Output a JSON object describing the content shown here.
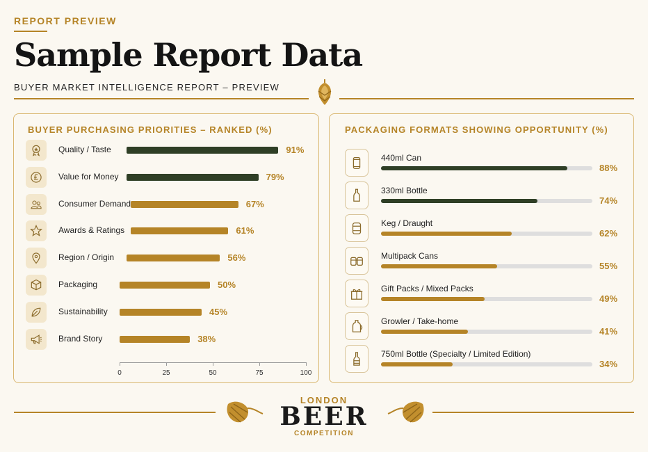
{
  "header": {
    "kicker": "REPORT PREVIEW",
    "title": "Sample Report Data",
    "subtitle": "BUYER MARKET INTELLIGENCE REPORT – PREVIEW"
  },
  "colors": {
    "gold": "#b58427",
    "green": "#2f3f26",
    "track": "#dedede",
    "bg": "#fbf8f1"
  },
  "chart_data": [
    {
      "type": "bar",
      "orientation": "horizontal",
      "title": "BUYER PURCHASING PRIORITIES – RANKED (%)",
      "categories": [
        "Quality / Taste",
        "Value for Money",
        "Consumer Demand",
        "Awards & Ratings",
        "Region / Origin",
        "Packaging",
        "Sustainability",
        "Brand Story"
      ],
      "values": [
        91,
        79,
        67,
        61,
        56,
        50,
        45,
        38
      ],
      "labels": [
        "91%",
        "79%",
        "67%",
        "61%",
        "56%",
        "50%",
        "45%",
        "38%"
      ],
      "icons": [
        "rosette-icon",
        "pound-icon",
        "people-icon",
        "star-icon",
        "location-pin-icon",
        "box-icon",
        "leaf-icon",
        "megaphone-icon"
      ],
      "bar_colors": [
        "#2f3f26",
        "#2f3f26",
        "#b58427",
        "#b58427",
        "#b58427",
        "#b58427",
        "#b58427",
        "#b58427"
      ],
      "xlim": [
        0,
        100
      ],
      "xticks": [
        "0",
        "25",
        "50",
        "75",
        "100"
      ],
      "legend": "none",
      "grid": false
    },
    {
      "type": "bar",
      "orientation": "horizontal",
      "title": "PACKAGING FORMATS SHOWING OPPORTUNITY (%)",
      "categories": [
        "440ml Can",
        "330ml Bottle",
        "Keg / Draught",
        "Multipack Cans",
        "Gift Packs / Mixed Packs",
        "Growler / Take-home",
        "750ml Bottle  (Specialty / Limited Edition)"
      ],
      "values": [
        88,
        74,
        62,
        55,
        49,
        41,
        34
      ],
      "labels": [
        "88%",
        "74%",
        "62%",
        "55%",
        "49%",
        "41%",
        "34%"
      ],
      "icons": [
        "can-icon",
        "bottle-icon",
        "keg-icon",
        "multipack-icon",
        "gift-icon",
        "growler-icon",
        "large-bottle-icon"
      ],
      "bar_colors": [
        "#2f3f26",
        "#2f3f26",
        "#b58427",
        "#b58427",
        "#b58427",
        "#b58427",
        "#b58427"
      ],
      "xlim": [
        0,
        100
      ],
      "legend": "none",
      "grid": false
    }
  ],
  "footer": {
    "logo_top": "LONDON",
    "logo_main": "BEER",
    "logo_bottom": "COMPETITION"
  }
}
